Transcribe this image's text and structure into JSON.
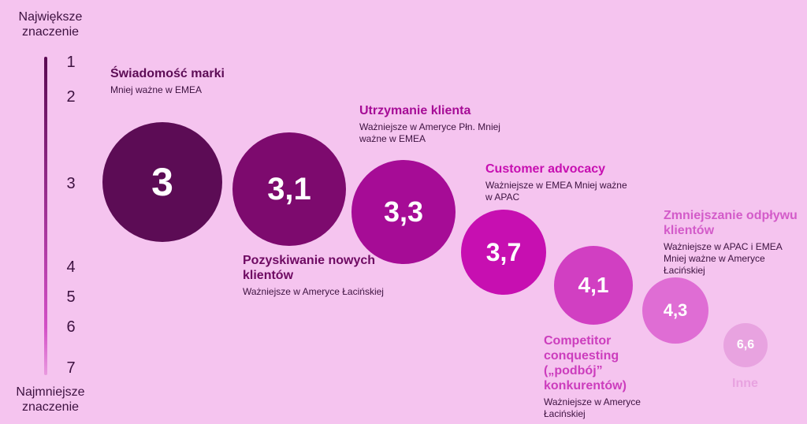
{
  "axis": {
    "top_label": "Największe znaczenie",
    "bottom_label": "Najmniejsze znaczenie",
    "ticks": [
      "1",
      "2",
      "3",
      "4",
      "5",
      "6",
      "7"
    ]
  },
  "chart_data": {
    "type": "scatter",
    "y_axis_range": [
      1,
      7
    ],
    "y_axis_direction": "top-to-bottom",
    "points": [
      {
        "label": "Świadomość marki",
        "value": "3",
        "note": "Mniej ważne w EMEA",
        "color": "#5c0c55"
      },
      {
        "label": "Pozyskiwanie nowych klientów",
        "value": "3,1",
        "note": "Ważniejsze w Ameryce Łacińskiej",
        "color": "#7d0a6e"
      },
      {
        "label": "Utrzymanie klienta",
        "value": "3,3",
        "note": "Ważniejsze w Ameryce Płn. Mniej ważne w EMEA",
        "color": "#a60c96"
      },
      {
        "label": "Customer advocacy",
        "value": "3,7",
        "note": "Ważniejsze w EMEA Mniej ważne w APAC",
        "color": "#c70fb1"
      },
      {
        "label": "Competitor conquesting („podbój” konkurentów)",
        "value": "4,1",
        "note": "Ważniejsze w Ameryce Łacińskiej",
        "color": "#d13fc2"
      },
      {
        "label": "Zmniejszanie odpływu klientów",
        "value": "4,3",
        "note": "Ważniejsze w APAC i EMEA Mniej ważne w Ameryce Łacińskiej",
        "color": "#df6dd4"
      },
      {
        "label": "Inne",
        "value": "6,6",
        "note": "",
        "color": "#e8a3e0"
      }
    ]
  },
  "colors": {
    "background": "#f5c4ef",
    "text_dark": "#3d1240"
  }
}
